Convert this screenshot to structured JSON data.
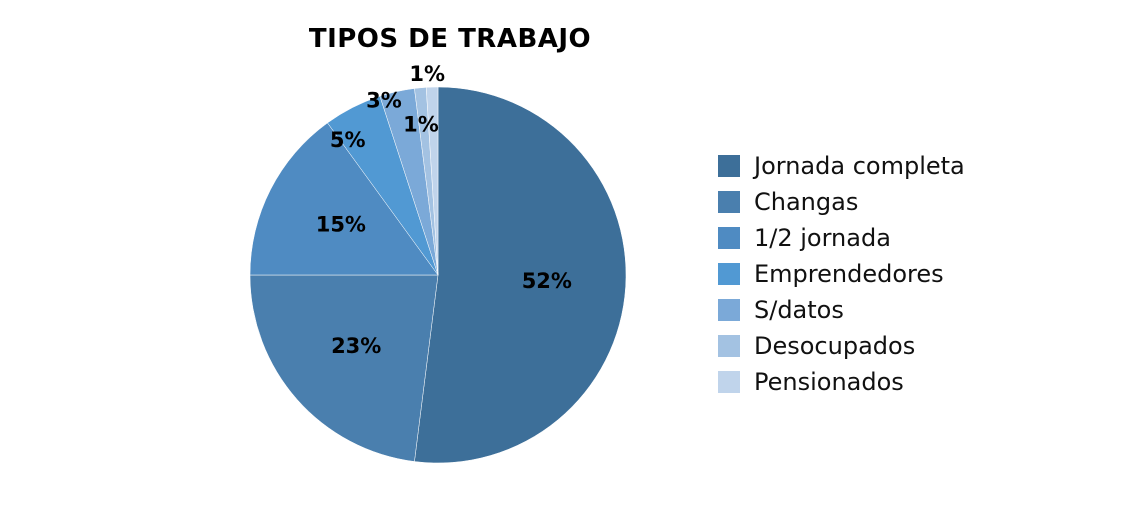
{
  "chart_data": {
    "type": "pie",
    "title": "TIPOS DE TRABAJO",
    "categories": [
      "Jornada completa",
      "Changas",
      "1/2 jornada",
      "Emprendedores",
      "S/datos",
      "Desocupados",
      "Pensionados"
    ],
    "values": [
      52,
      23,
      15,
      5,
      3,
      1,
      1
    ],
    "data_labels": [
      "52%",
      "23%",
      "15%",
      "5%",
      "3%",
      "1%",
      "1%"
    ],
    "colors": [
      "#3d6f99",
      "#4a7fae",
      "#4f8bc2",
      "#5199d3",
      "#7ba9d8",
      "#a3c2e2",
      "#c0d4eb"
    ],
    "legend_position": "right"
  }
}
